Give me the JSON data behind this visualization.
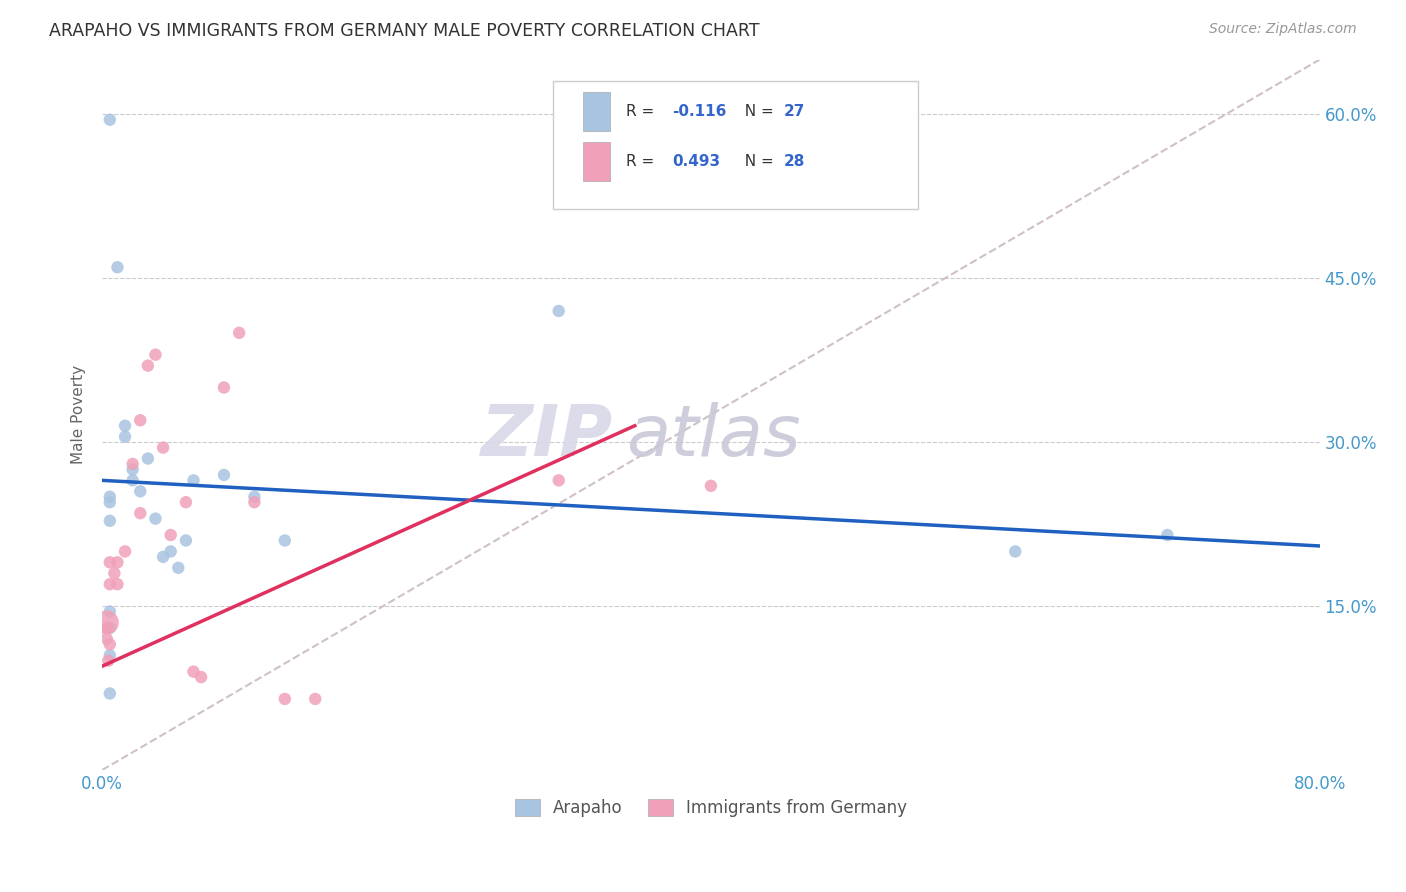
{
  "title": "ARAPAHO VS IMMIGRANTS FROM GERMANY MALE POVERTY CORRELATION CHART",
  "source": "Source: ZipAtlas.com",
  "ylabel": "Male Poverty",
  "ytick_labels": [
    "15.0%",
    "30.0%",
    "45.0%",
    "60.0%"
  ],
  "ytick_values": [
    0.15,
    0.3,
    0.45,
    0.6
  ],
  "xmin": 0.0,
  "xmax": 0.8,
  "ymin": 0.0,
  "ymax": 0.65,
  "arapaho_color": "#a8c4e0",
  "germany_color": "#f0a0b8",
  "arapaho_line_color": "#2060c0",
  "germany_line_color": "#e03060",
  "diagonal_color": "#d0c0c8",
  "legend_color_blue": "#3366cc",
  "legend_r_arapaho_prefix": "R = ",
  "legend_r_arapaho_val": "-0.116",
  "legend_n_arapaho_prefix": "  N = ",
  "legend_n_arapaho_val": "27",
  "legend_r_germany_prefix": "R = ",
  "legend_r_germany_val": "0.493",
  "legend_n_germany_prefix": "  N = ",
  "legend_n_germany_val": "28",
  "arapaho_x": [
    0.005,
    0.01,
    0.015,
    0.015,
    0.02,
    0.02,
    0.025,
    0.03,
    0.035,
    0.04,
    0.045,
    0.05,
    0.055,
    0.06,
    0.08,
    0.1,
    0.12,
    0.3,
    0.6,
    0.7,
    0.005,
    0.005,
    0.005,
    0.005,
    0.005,
    0.005,
    0.005
  ],
  "arapaho_y": [
    0.595,
    0.46,
    0.315,
    0.305,
    0.275,
    0.265,
    0.255,
    0.285,
    0.23,
    0.195,
    0.2,
    0.185,
    0.21,
    0.265,
    0.27,
    0.25,
    0.21,
    0.42,
    0.2,
    0.215,
    0.25,
    0.245,
    0.228,
    0.145,
    0.105,
    0.07,
    0.13
  ],
  "arapaho_size": [
    80,
    80,
    80,
    80,
    80,
    80,
    80,
    80,
    80,
    80,
    80,
    80,
    80,
    80,
    80,
    80,
    80,
    80,
    80,
    80,
    80,
    80,
    80,
    80,
    80,
    80,
    80
  ],
  "germany_x": [
    0.003,
    0.003,
    0.003,
    0.004,
    0.005,
    0.005,
    0.005,
    0.008,
    0.01,
    0.01,
    0.015,
    0.02,
    0.025,
    0.025,
    0.03,
    0.035,
    0.04,
    0.045,
    0.055,
    0.06,
    0.065,
    0.08,
    0.09,
    0.1,
    0.12,
    0.14,
    0.3,
    0.4
  ],
  "germany_y": [
    0.135,
    0.13,
    0.12,
    0.1,
    0.19,
    0.17,
    0.115,
    0.18,
    0.19,
    0.17,
    0.2,
    0.28,
    0.32,
    0.235,
    0.37,
    0.38,
    0.295,
    0.215,
    0.245,
    0.09,
    0.085,
    0.35,
    0.4,
    0.245,
    0.065,
    0.065,
    0.265,
    0.26
  ],
  "germany_size": [
    300,
    80,
    80,
    80,
    80,
    80,
    80,
    80,
    80,
    80,
    80,
    80,
    80,
    80,
    80,
    80,
    80,
    80,
    80,
    80,
    80,
    80,
    80,
    80,
    80,
    80,
    80,
    80
  ],
  "arapaho_line_x0": 0.0,
  "arapaho_line_x1": 0.8,
  "arapaho_line_y0": 0.265,
  "arapaho_line_y1": 0.205,
  "germany_line_x0": 0.0,
  "germany_line_x1": 0.35,
  "germany_line_y0": 0.095,
  "germany_line_y1": 0.315,
  "watermark_zip_color": "#d8d8e8",
  "watermark_atlas_color": "#c8c8d8"
}
